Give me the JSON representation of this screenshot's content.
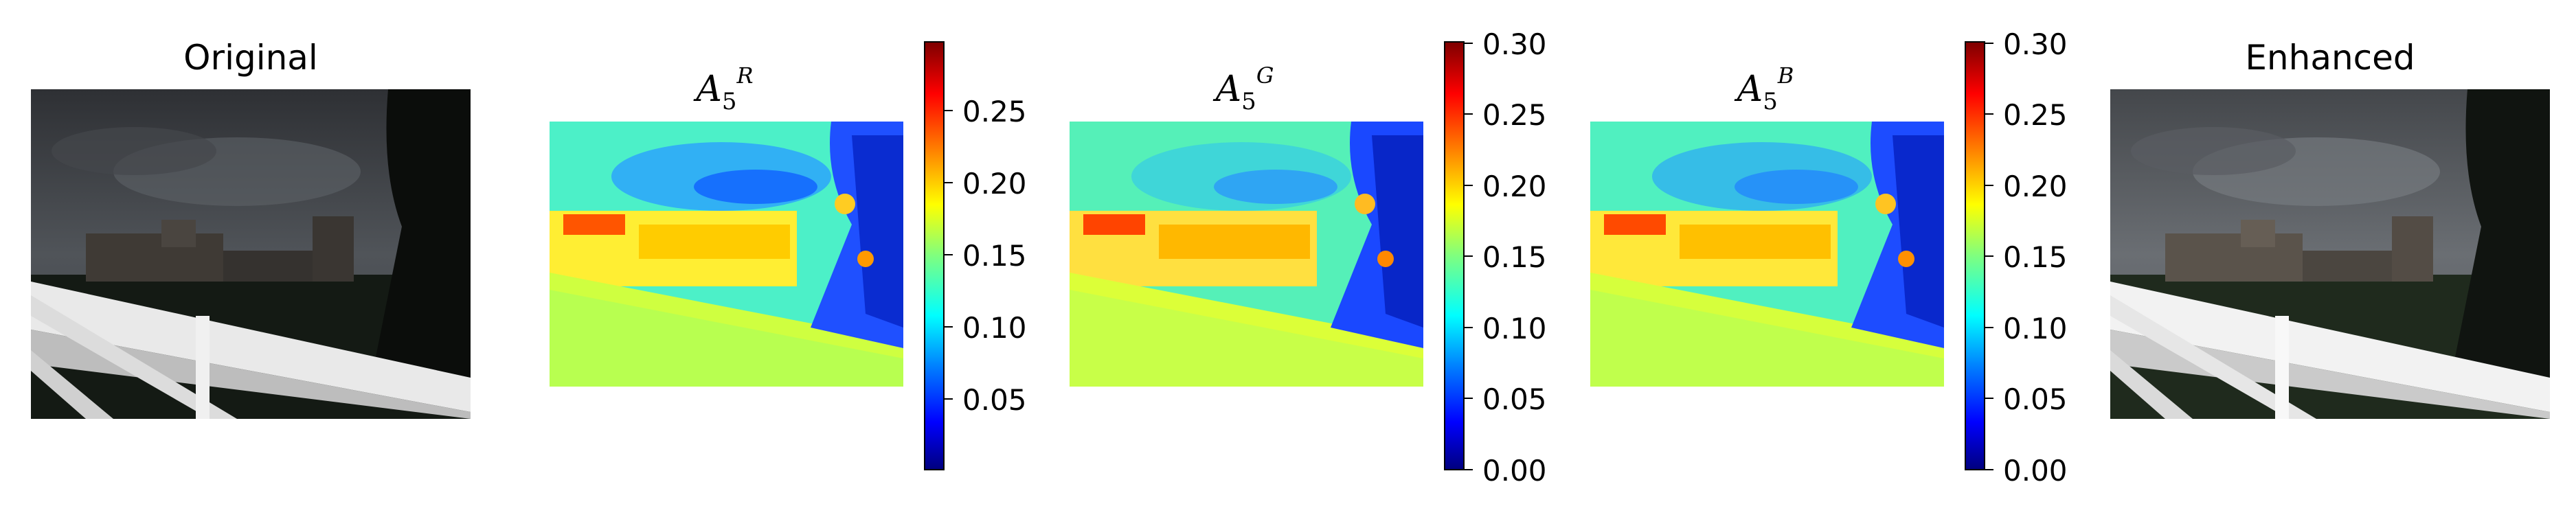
{
  "figure": {
    "panels": [
      {
        "id": "original",
        "title": "Original"
      },
      {
        "id": "map_r",
        "title_symbol": "A",
        "title_sub": "5",
        "title_sup": "R",
        "colorbar_ticks": [
          "0.05",
          "0.10",
          "0.15",
          "0.20",
          "0.25"
        ],
        "colorbar_range": [
          0.0,
          0.295
        ]
      },
      {
        "id": "map_g",
        "title_symbol": "A",
        "title_sub": "5",
        "title_sup": "G",
        "colorbar_ticks": [
          "0.00",
          "0.05",
          "0.10",
          "0.15",
          "0.20",
          "0.25",
          "0.30"
        ],
        "colorbar_range": [
          0.0,
          0.3
        ]
      },
      {
        "id": "map_b",
        "title_symbol": "A",
        "title_sub": "5",
        "title_sup": "B",
        "colorbar_ticks": [
          "0.00",
          "0.05",
          "0.10",
          "0.15",
          "0.20",
          "0.25",
          "0.30"
        ],
        "colorbar_range": [
          0.0,
          0.3
        ]
      },
      {
        "id": "enhanced",
        "title": "Enhanced"
      }
    ],
    "colormap": "jet",
    "colors": {
      "fence": "#e6e6e6",
      "sky_dark": "#3a3d42",
      "grass": "#1a2418"
    }
  }
}
